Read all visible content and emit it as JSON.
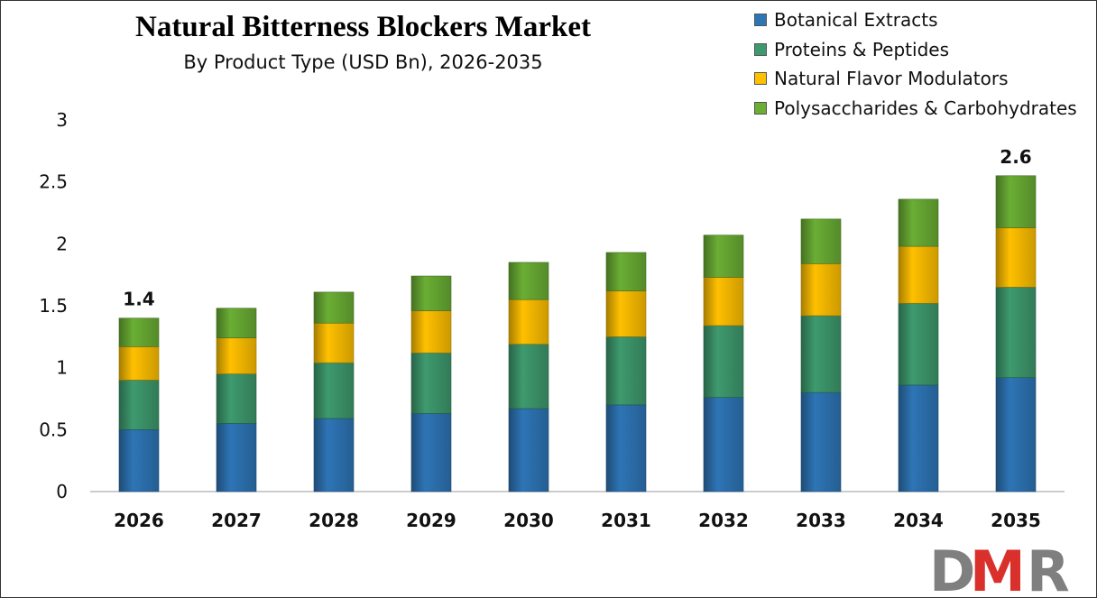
{
  "chart_data": {
    "type": "bar",
    "stacked": true,
    "title": "Natural Bitterness Blockers Market",
    "subtitle": "By Product Type (USD Bn), 2026-2035",
    "xlabel": "",
    "ylabel": "",
    "ylim": [
      0,
      3
    ],
    "yticks": [
      "0",
      "0.5",
      "1",
      "1.5",
      "2",
      "2.5",
      "3"
    ],
    "grid": false,
    "legend_position": "top-right",
    "categories": [
      "2026",
      "2027",
      "2028",
      "2029",
      "2030",
      "2031",
      "2032",
      "2033",
      "2034",
      "2035"
    ],
    "series": [
      {
        "name": "Botanical Extracts",
        "color": "#2E75B6",
        "values": [
          0.5,
          0.55,
          0.59,
          0.63,
          0.67,
          0.7,
          0.76,
          0.8,
          0.86,
          0.92
        ]
      },
      {
        "name": "Proteins & Peptides",
        "color": "#3E9A6E",
        "values": [
          0.4,
          0.4,
          0.45,
          0.49,
          0.52,
          0.55,
          0.58,
          0.62,
          0.66,
          0.73
        ]
      },
      {
        "name": "Natural Flavor Modulators",
        "color": "#FFC000",
        "values": [
          0.27,
          0.29,
          0.32,
          0.34,
          0.36,
          0.37,
          0.39,
          0.42,
          0.46,
          0.48
        ]
      },
      {
        "name": "Polysaccharides & Carbohydrates",
        "color": "#6AAE34",
        "values": [
          0.23,
          0.24,
          0.25,
          0.28,
          0.3,
          0.31,
          0.34,
          0.36,
          0.38,
          0.42
        ]
      }
    ],
    "data_labels": [
      {
        "category": "2026",
        "text": "1.4"
      },
      {
        "category": "2035",
        "text": "2.6"
      }
    ]
  },
  "logo": {
    "text_d": "D",
    "text_m": "M",
    "text_r": "R",
    "gray": "#7f7f7f",
    "red": "#d9302c"
  }
}
